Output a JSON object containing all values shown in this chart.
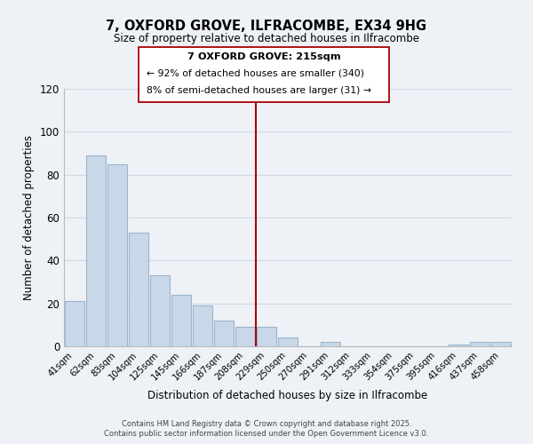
{
  "title": "7, OXFORD GROVE, ILFRACOMBE, EX34 9HG",
  "subtitle": "Size of property relative to detached houses in Ilfracombe",
  "xlabel": "Distribution of detached houses by size in Ilfracombe",
  "ylabel": "Number of detached properties",
  "bar_labels": [
    "41sqm",
    "62sqm",
    "83sqm",
    "104sqm",
    "125sqm",
    "145sqm",
    "166sqm",
    "187sqm",
    "208sqm",
    "229sqm",
    "250sqm",
    "270sqm",
    "291sqm",
    "312sqm",
    "333sqm",
    "354sqm",
    "375sqm",
    "395sqm",
    "416sqm",
    "437sqm",
    "458sqm"
  ],
  "bar_values": [
    21,
    89,
    85,
    53,
    33,
    24,
    19,
    12,
    9,
    9,
    4,
    0,
    2,
    0,
    0,
    0,
    0,
    0,
    1,
    2,
    2
  ],
  "bar_color": "#c8d8e8",
  "bar_edge_color": "#9ab4cc",
  "ylim": [
    0,
    120
  ],
  "yticks": [
    0,
    20,
    40,
    60,
    80,
    100,
    120
  ],
  "vline_x_idx": 8,
  "vline_color": "#aa0000",
  "annotation_title": "7 OXFORD GROVE: 215sqm",
  "annotation_line1": "← 92% of detached houses are smaller (340)",
  "annotation_line2": "8% of semi-detached houses are larger (31) →",
  "bg_color": "#eef2f7",
  "grid_color": "#d0d8e4",
  "footer1": "Contains HM Land Registry data © Crown copyright and database right 2025.",
  "footer2": "Contains public sector information licensed under the Open Government Licence v3.0."
}
